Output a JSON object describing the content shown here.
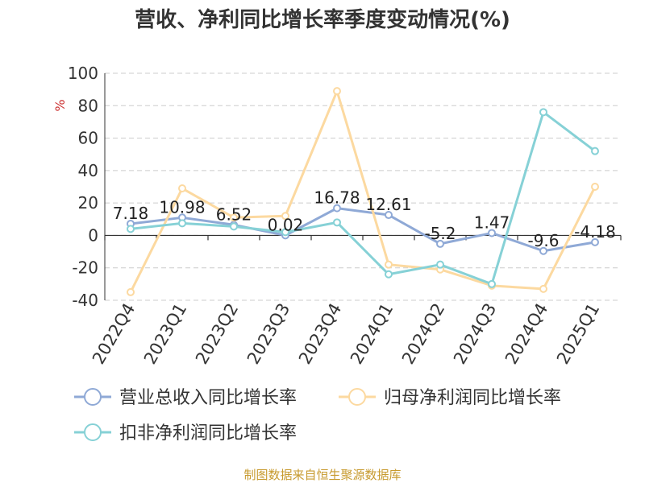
{
  "title": "营收、净利同比增长率季度变动情况(%)",
  "footer": "制图数据来自恒生聚源数据库",
  "colors": {
    "revenue": "#8fa9d6",
    "net_profit": "#fcd9a0",
    "deducted_profit": "#86d1d6",
    "unit": "#cc3333",
    "axis_text": "#333333",
    "grid": "#cccccc",
    "footer": "#c79a2e"
  },
  "chart_data": {
    "type": "line",
    "ylabel": "%",
    "ylim": [
      -40,
      100
    ],
    "yticks": [
      100,
      80,
      60,
      40,
      20,
      0,
      -20,
      -40
    ],
    "grid": true,
    "legend_position": "bottom",
    "categories": [
      "2022Q4",
      "2023Q1",
      "2023Q2",
      "2023Q3",
      "2023Q4",
      "2024Q1",
      "2024Q2",
      "2024Q3",
      "2024Q4",
      "2025Q1"
    ],
    "series": [
      {
        "name": "营业总收入同比增长率",
        "color": "#8fa9d6",
        "values": [
          7.18,
          10.98,
          6.52,
          0.02,
          16.78,
          12.61,
          -5.2,
          1.47,
          -9.6,
          -4.18
        ],
        "labels": [
          "7.18",
          "10.98",
          "6.52",
          "0.02",
          "16.78",
          "12.61",
          "-5.2",
          "1.47",
          "-9.6",
          "-4.18"
        ]
      },
      {
        "name": "归母净利润同比增长率",
        "color": "#fcd9a0",
        "values": [
          -35,
          29,
          11,
          12,
          89,
          -18,
          -21,
          -31,
          -33,
          30
        ]
      },
      {
        "name": "扣非净利润同比增长率",
        "color": "#86d1d6",
        "values": [
          4,
          7.5,
          5.5,
          2,
          8,
          -24,
          -18,
          -30,
          76,
          52
        ]
      }
    ]
  }
}
